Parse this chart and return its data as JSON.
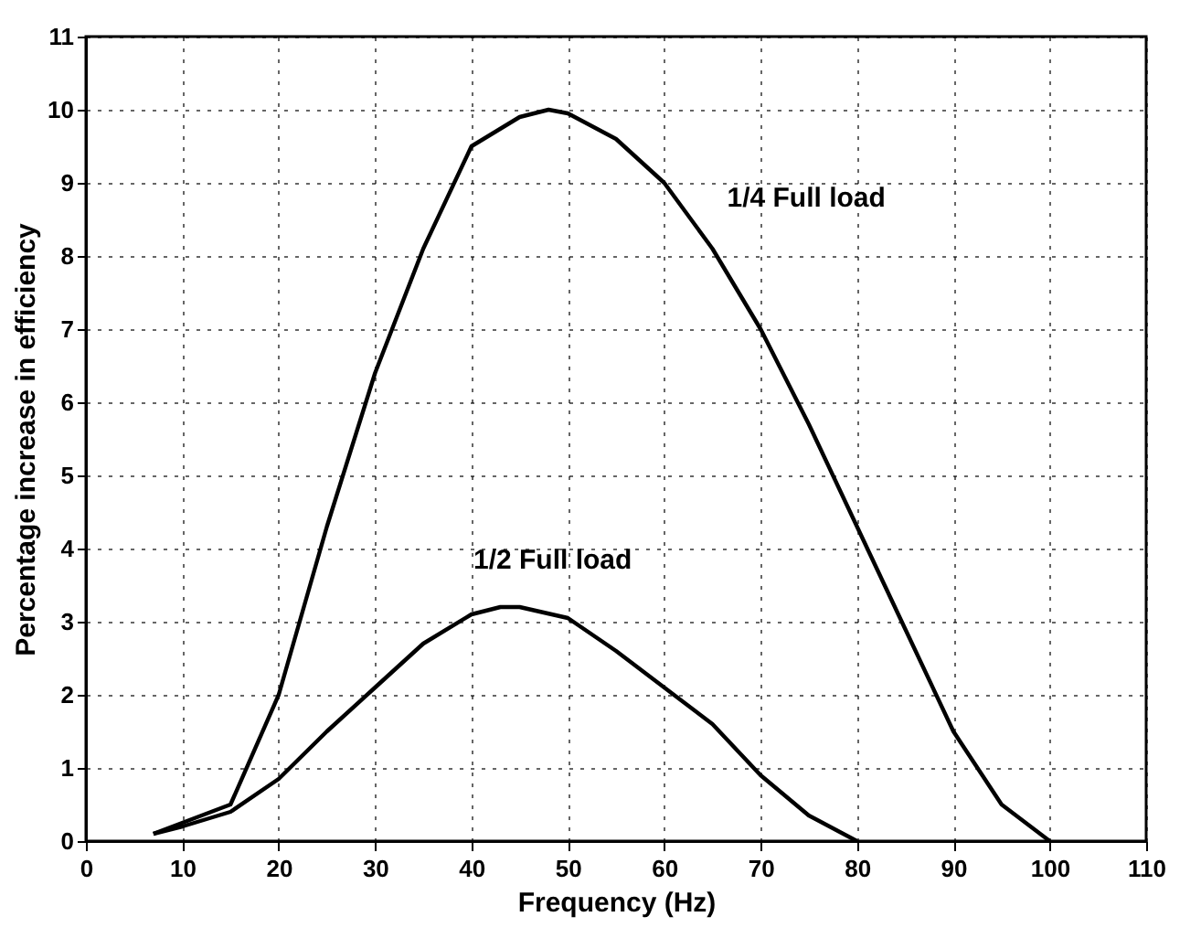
{
  "chart_data": {
    "type": "line",
    "xlabel": "Frequency (Hz)",
    "ylabel": "Percentage increase in efficiency",
    "xlim": [
      0,
      110
    ],
    "xticks": [
      0,
      10,
      20,
      30,
      40,
      50,
      60,
      70,
      80,
      90,
      100,
      110
    ],
    "ylim": [
      0,
      11
    ],
    "yticks": [
      0,
      1,
      2,
      3,
      4,
      5,
      6,
      7,
      8,
      9,
      10,
      11
    ],
    "grid": true,
    "marker": "none",
    "line_style": "solid",
    "annotations": [
      {
        "text": "1/4  Full load",
        "x": 65,
        "y": 8.1
      },
      {
        "text": "1/2 Full load",
        "x": 44,
        "y": 3.2
      }
    ],
    "series": [
      {
        "color": "#000000",
        "x": [
          7,
          10,
          15,
          20,
          25,
          30,
          35,
          40,
          45,
          48,
          50,
          55,
          60,
          65,
          70,
          75,
          80,
          85,
          90,
          95,
          100
        ],
        "values": [
          0.1,
          0.25,
          0.5,
          2,
          4.3,
          6.4,
          8.1,
          9.5,
          9.9,
          10,
          9.95,
          9.6,
          9,
          8.1,
          7,
          5.7,
          4.3,
          2.9,
          1.5,
          0.5,
          0
        ]
      },
      {
        "color": "#000000",
        "x": [
          7,
          10,
          15,
          20,
          25,
          30,
          35,
          40,
          43,
          45,
          50,
          55,
          60,
          65,
          70,
          75,
          80
        ],
        "values": [
          0.1,
          0.2,
          0.4,
          0.85,
          1.5,
          2.1,
          2.7,
          3.1,
          3.2,
          3.2,
          3.05,
          2.6,
          2.1,
          1.6,
          0.9,
          0.35,
          0
        ]
      }
    ]
  }
}
